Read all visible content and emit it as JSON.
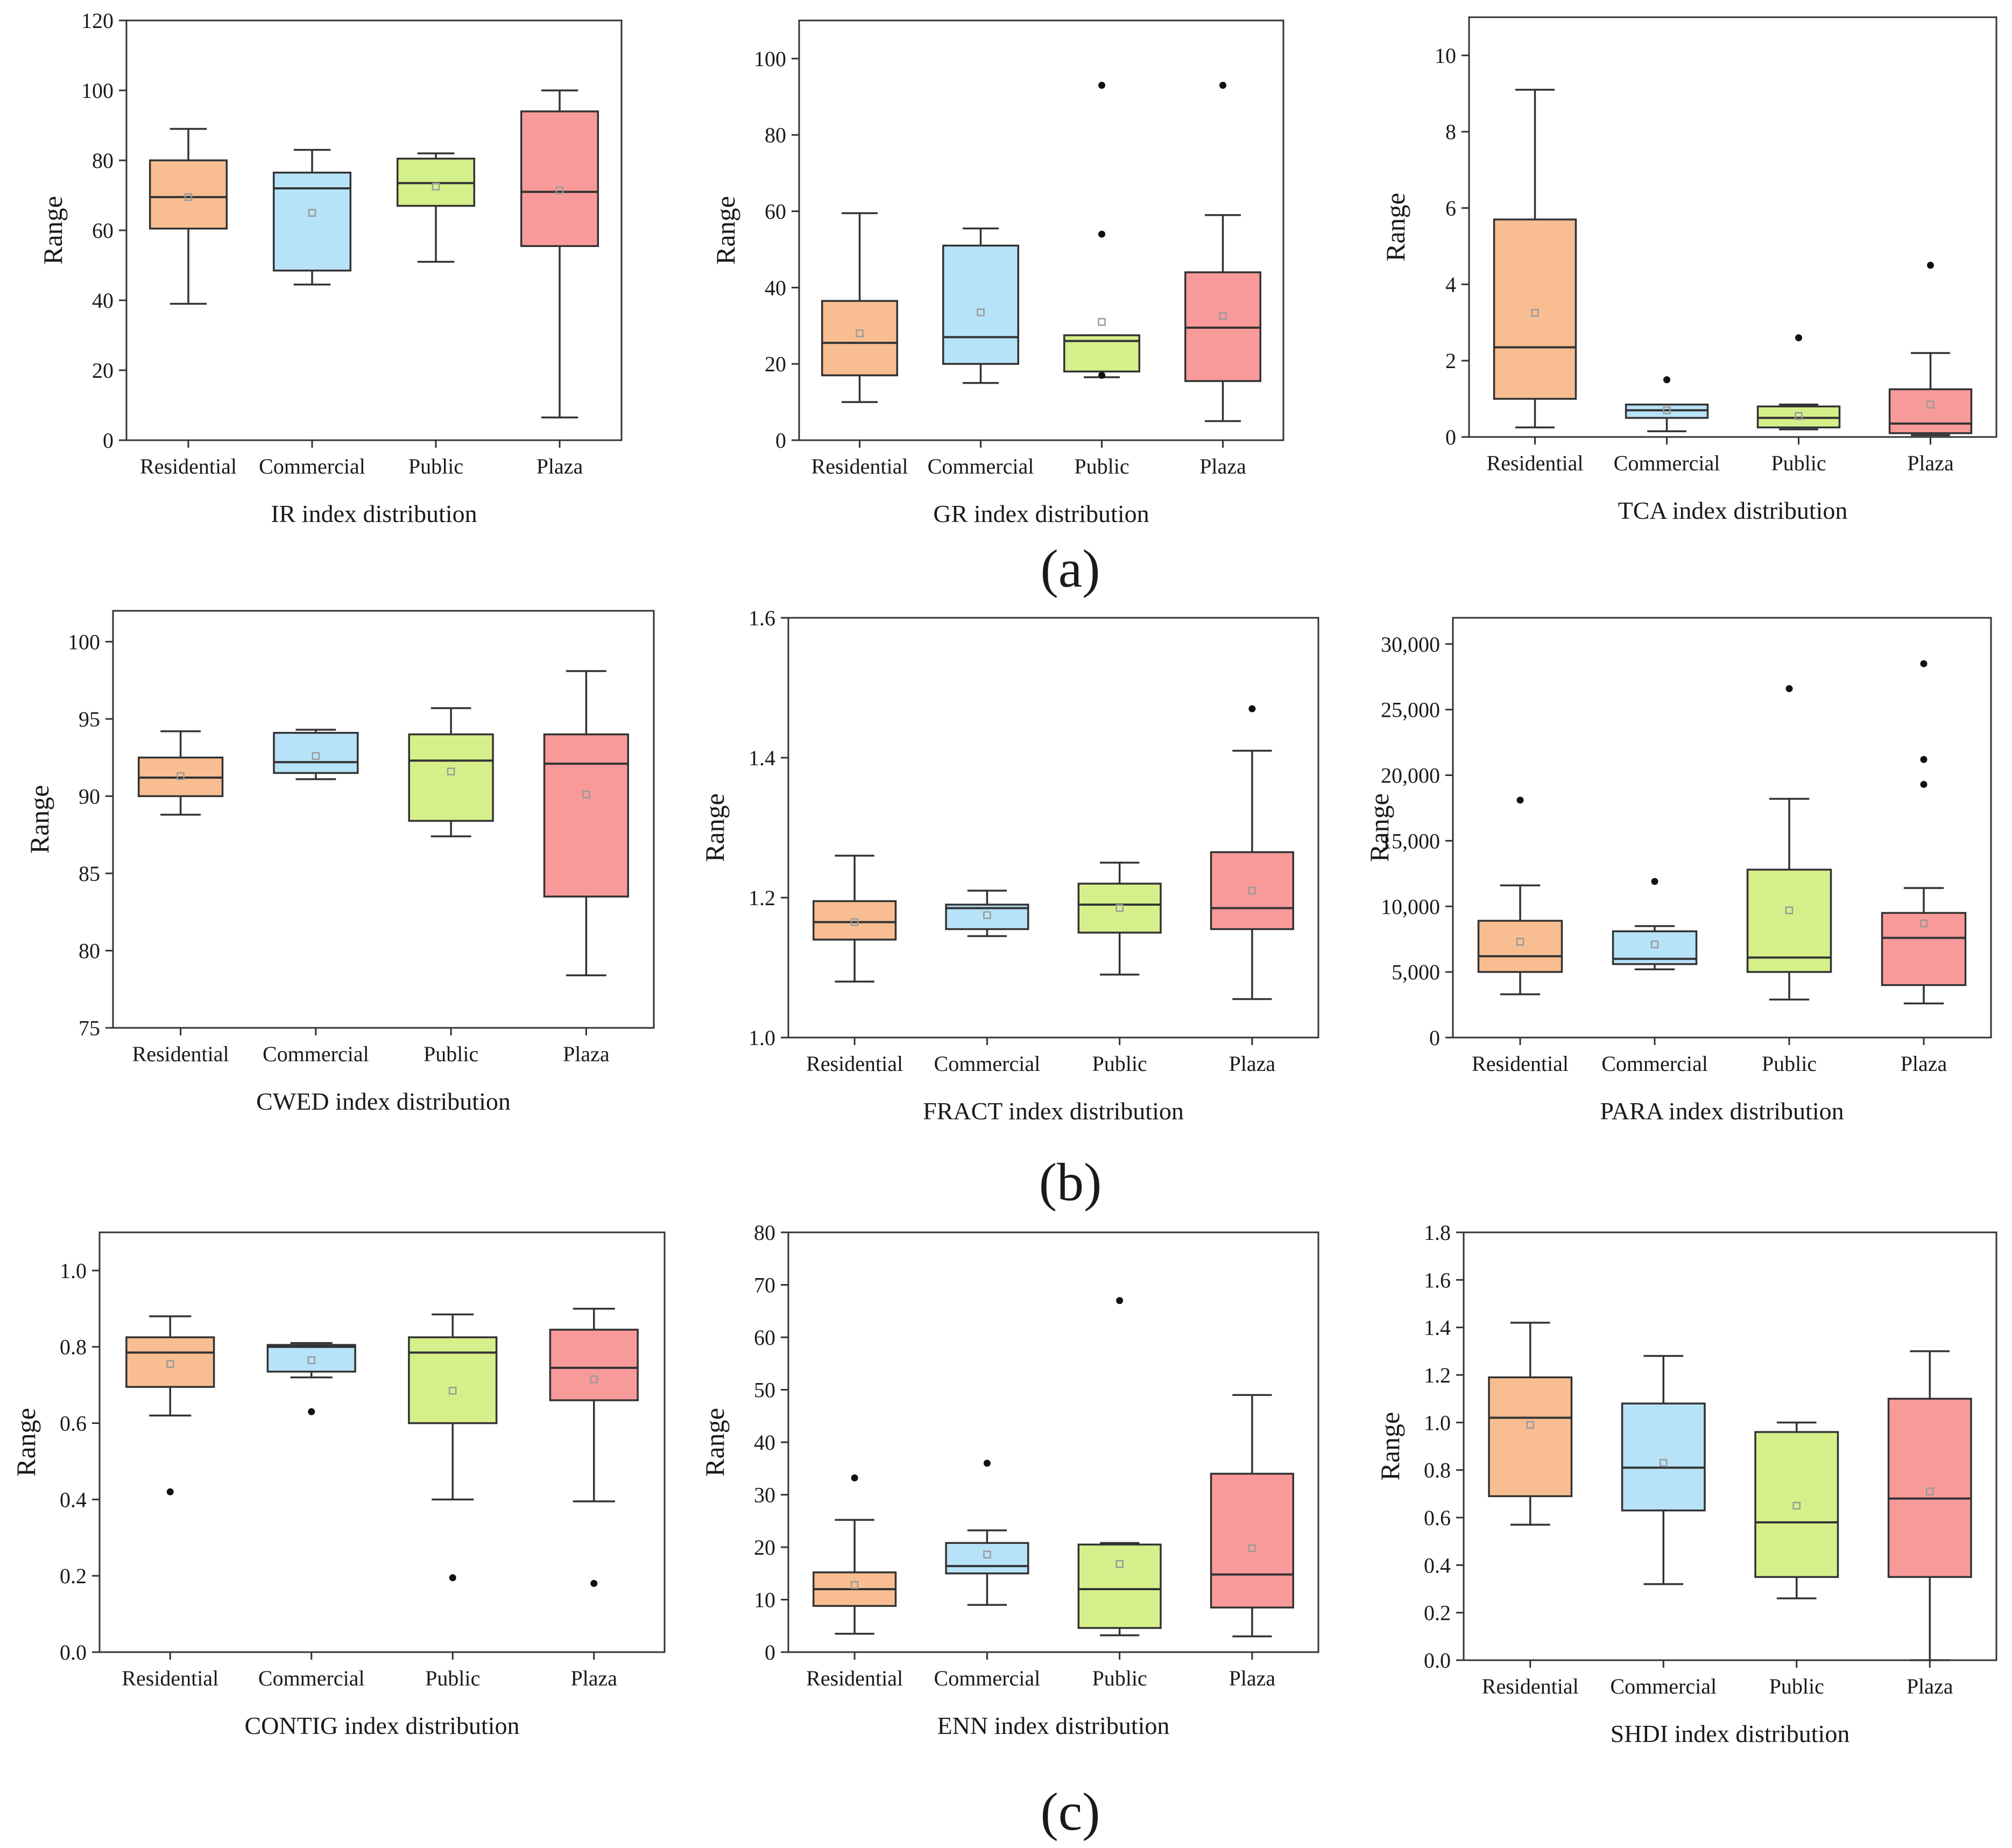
{
  "figure": {
    "panel_labels": [
      "(a)",
      "(b)",
      "(c)"
    ],
    "category_colors": {
      "Residential": "#F8BE92",
      "Commercial": "#B7E3F8",
      "Public": "#D5F08B",
      "Plaza": "#F99A9A"
    },
    "mean_marker_color": "#9a9a9a"
  },
  "chart_data": [
    {
      "type": "box",
      "title": "IR index distribution",
      "xlabel": "IR index distribution",
      "ylabel": "Range",
      "ylim": [
        0,
        120
      ],
      "yticks": [
        "0",
        "20",
        "40",
        "60",
        "80",
        "100",
        "120"
      ],
      "yticks_values": [
        0,
        20,
        40,
        60,
        80,
        100,
        120
      ],
      "categories": [
        "Residential",
        "Commercial",
        "Public",
        "Plaza"
      ],
      "boxes": [
        {
          "min": 39,
          "q1": 60.5,
          "median": 69.5,
          "q3": 80,
          "max": 89,
          "mean": 69.5,
          "outliers": []
        },
        {
          "min": 44.5,
          "q1": 48.5,
          "median": 72,
          "q3": 76.5,
          "max": 83,
          "mean": 65,
          "outliers": []
        },
        {
          "min": 51,
          "q1": 67,
          "median": 73.5,
          "q3": 80.5,
          "max": 82,
          "mean": 72.5,
          "outliers": []
        },
        {
          "min": 6.5,
          "q1": 55.5,
          "median": 71,
          "q3": 94,
          "max": 100,
          "mean": 71.5,
          "outliers": []
        }
      ]
    },
    {
      "type": "box",
      "title": "GR index distribution",
      "xlabel": "GR index distribution",
      "ylabel": "Range",
      "ylim": [
        0,
        110
      ],
      "yticks": [
        "0",
        "20",
        "40",
        "60",
        "80",
        "100"
      ],
      "yticks_values": [
        0,
        20,
        40,
        60,
        80,
        100
      ],
      "categories": [
        "Residential",
        "Commercial",
        "Public",
        "Plaza"
      ],
      "boxes": [
        {
          "min": 10,
          "q1": 17,
          "median": 25.5,
          "q3": 36.5,
          "max": 59.5,
          "mean": 28,
          "outliers": []
        },
        {
          "min": 15,
          "q1": 20,
          "median": 27,
          "q3": 51,
          "max": 55.5,
          "mean": 33.5,
          "outliers": []
        },
        {
          "min": 16.5,
          "q1": 18,
          "median": 26,
          "q3": 27.5,
          "max": 27.5,
          "mean": 31,
          "outliers": [
            54,
            93,
            17
          ]
        },
        {
          "min": 5,
          "q1": 15.5,
          "median": 29.5,
          "q3": 44,
          "max": 59,
          "mean": 32.5,
          "outliers": [
            93
          ]
        }
      ]
    },
    {
      "type": "box",
      "title": "TCA index distribution",
      "xlabel": "TCA index distribution",
      "ylabel": "Range",
      "ylim": [
        0,
        11
      ],
      "yticks": [
        "0",
        "2",
        "4",
        "6",
        "8",
        "10"
      ],
      "yticks_values": [
        0,
        2,
        4,
        6,
        8,
        10
      ],
      "categories": [
        "Residential",
        "Commercial",
        "Public",
        "Plaza"
      ],
      "boxes": [
        {
          "min": 0.25,
          "q1": 1,
          "median": 2.35,
          "q3": 5.7,
          "max": 9.1,
          "mean": 3.25,
          "outliers": []
        },
        {
          "min": 0.15,
          "q1": 0.5,
          "median": 0.7,
          "q3": 0.85,
          "max": 0.85,
          "mean": 0.7,
          "outliers": [
            1.5
          ]
        },
        {
          "min": 0.2,
          "q1": 0.25,
          "median": 0.5,
          "q3": 0.8,
          "max": 0.85,
          "mean": 0.55,
          "outliers": [
            2.6
          ]
        },
        {
          "min": 0.05,
          "q1": 0.1,
          "median": 0.35,
          "q3": 1.25,
          "max": 2.2,
          "mean": 0.85,
          "outliers": [
            4.5
          ]
        }
      ]
    },
    {
      "type": "box",
      "title": "CWED index distribution",
      "xlabel": "CWED index distribution",
      "ylabel": "Range",
      "ylim": [
        75,
        102
      ],
      "yticks": [
        "75",
        "80",
        "85",
        "90",
        "95",
        "100"
      ],
      "yticks_values": [
        75,
        80,
        85,
        90,
        95,
        100
      ],
      "categories": [
        "Residential",
        "Commercial",
        "Public",
        "Plaza"
      ],
      "boxes": [
        {
          "min": 88.8,
          "q1": 90,
          "median": 91.2,
          "q3": 92.5,
          "max": 94.2,
          "mean": 91.3,
          "outliers": []
        },
        {
          "min": 91.1,
          "q1": 91.5,
          "median": 92.2,
          "q3": 94.1,
          "max": 94.3,
          "mean": 92.6,
          "outliers": []
        },
        {
          "min": 87.4,
          "q1": 88.4,
          "median": 92.3,
          "q3": 94,
          "max": 95.7,
          "mean": 91.6,
          "outliers": []
        },
        {
          "min": 78.4,
          "q1": 83.5,
          "median": 92.1,
          "q3": 94,
          "max": 98.1,
          "mean": 90.1,
          "outliers": []
        }
      ]
    },
    {
      "type": "box",
      "title": "FRACT index distribution",
      "xlabel": "FRACT index distribution",
      "ylabel": "Range",
      "ylim": [
        1.0,
        1.6
      ],
      "yticks": [
        "1.0",
        "1.2",
        "1.4",
        "1.6"
      ],
      "yticks_values": [
        1.0,
        1.2,
        1.4,
        1.6
      ],
      "categories": [
        "Residential",
        "Commercial",
        "Public",
        "Plaza"
      ],
      "boxes": [
        {
          "min": 1.08,
          "q1": 1.14,
          "median": 1.165,
          "q3": 1.195,
          "max": 1.26,
          "mean": 1.165,
          "outliers": []
        },
        {
          "min": 1.145,
          "q1": 1.155,
          "median": 1.185,
          "q3": 1.19,
          "max": 1.21,
          "mean": 1.175,
          "outliers": []
        },
        {
          "min": 1.09,
          "q1": 1.15,
          "median": 1.19,
          "q3": 1.22,
          "max": 1.25,
          "mean": 1.185,
          "outliers": []
        },
        {
          "min": 1.055,
          "q1": 1.155,
          "median": 1.185,
          "q3": 1.265,
          "max": 1.41,
          "mean": 1.21,
          "outliers": [
            1.47
          ]
        }
      ]
    },
    {
      "type": "box",
      "title": "PARA index distribution",
      "xlabel": "PARA index distribution",
      "ylabel": "Range",
      "ylim": [
        0,
        32000
      ],
      "yticks": [
        "0",
        "5,000",
        "10,000",
        "15,000",
        "20,000",
        "25,000",
        "30,000"
      ],
      "yticks_values": [
        0,
        5000,
        10000,
        15000,
        20000,
        25000,
        30000
      ],
      "categories": [
        "Residential",
        "Commercial",
        "Public",
        "Plaza"
      ],
      "boxes": [
        {
          "min": 3300,
          "q1": 5000,
          "median": 6200,
          "q3": 8900,
          "max": 11600,
          "mean": 7300,
          "outliers": [
            18100
          ]
        },
        {
          "min": 5200,
          "q1": 5600,
          "median": 6000,
          "q3": 8100,
          "max": 8500,
          "mean": 7100,
          "outliers": [
            11900
          ]
        },
        {
          "min": 2900,
          "q1": 5000,
          "median": 6100,
          "q3": 12800,
          "max": 18200,
          "mean": 9700,
          "outliers": [
            26600
          ]
        },
        {
          "min": 2600,
          "q1": 4000,
          "median": 7600,
          "q3": 9500,
          "max": 11400,
          "mean": 8700,
          "outliers": [
            19300,
            21200,
            28500
          ]
        }
      ]
    },
    {
      "type": "box",
      "title": "CONTIG index distribution",
      "xlabel": "CONTIG index distribution",
      "ylabel": "Range",
      "ylim": [
        0,
        1.1
      ],
      "yticks": [
        "0.0",
        "0.2",
        "0.4",
        "0.6",
        "0.8",
        "1.0"
      ],
      "yticks_values": [
        0,
        0.2,
        0.4,
        0.6,
        0.8,
        1.0
      ],
      "categories": [
        "Residential",
        "Commercial",
        "Public",
        "Plaza"
      ],
      "boxes": [
        {
          "min": 0.62,
          "q1": 0.695,
          "median": 0.785,
          "q3": 0.825,
          "max": 0.88,
          "mean": 0.755,
          "outliers": [
            0.42
          ]
        },
        {
          "min": 0.72,
          "q1": 0.735,
          "median": 0.8,
          "q3": 0.805,
          "max": 0.81,
          "mean": 0.765,
          "outliers": [
            0.63
          ]
        },
        {
          "min": 0.4,
          "q1": 0.6,
          "median": 0.785,
          "q3": 0.825,
          "max": 0.885,
          "mean": 0.685,
          "outliers": [
            0.195
          ]
        },
        {
          "min": 0.395,
          "q1": 0.66,
          "median": 0.745,
          "q3": 0.845,
          "max": 0.9,
          "mean": 0.715,
          "outliers": [
            0.18
          ]
        }
      ]
    },
    {
      "type": "box",
      "title": "ENN index distribution",
      "xlabel": "ENN index distribution",
      "ylabel": "Range",
      "ylim": [
        0,
        80
      ],
      "yticks": [
        "0",
        "10",
        "20",
        "30",
        "40",
        "50",
        "60",
        "70",
        "80"
      ],
      "yticks_values": [
        0,
        10,
        20,
        30,
        40,
        50,
        60,
        70,
        80
      ],
      "categories": [
        "Residential",
        "Commercial",
        "Public",
        "Plaza"
      ],
      "boxes": [
        {
          "min": 3.5,
          "q1": 8.8,
          "median": 12,
          "q3": 15.2,
          "max": 25.2,
          "mean": 12.8,
          "outliers": [
            33.2
          ]
        },
        {
          "min": 9,
          "q1": 15,
          "median": 16.4,
          "q3": 20.8,
          "max": 23.2,
          "mean": 18.6,
          "outliers": [
            36
          ]
        },
        {
          "min": 3.2,
          "q1": 4.6,
          "median": 12,
          "q3": 20.5,
          "max": 20.8,
          "mean": 16.8,
          "outliers": [
            67
          ]
        },
        {
          "min": 3,
          "q1": 8.5,
          "median": 14.8,
          "q3": 34,
          "max": 49,
          "mean": 19.8,
          "outliers": []
        }
      ]
    },
    {
      "type": "box",
      "title": "SHDI index distribution",
      "xlabel": "SHDI index distribution",
      "ylabel": "Range",
      "ylim": [
        0,
        1.8
      ],
      "yticks": [
        "0.0",
        "0.2",
        "0.4",
        "0.6",
        "0.8",
        "1.0",
        "1.2",
        "1.4",
        "1.6",
        "1.8"
      ],
      "yticks_values": [
        0,
        0.2,
        0.4,
        0.6,
        0.8,
        1.0,
        1.2,
        1.4,
        1.6,
        1.8
      ],
      "categories": [
        "Residential",
        "Commercial",
        "Public",
        "Plaza"
      ],
      "boxes": [
        {
          "min": 0.57,
          "q1": 0.69,
          "median": 1.02,
          "q3": 1.19,
          "max": 1.42,
          "mean": 0.99,
          "outliers": []
        },
        {
          "min": 0.32,
          "q1": 0.63,
          "median": 0.81,
          "q3": 1.08,
          "max": 1.28,
          "mean": 0.83,
          "outliers": []
        },
        {
          "min": 0.26,
          "q1": 0.35,
          "median": 0.58,
          "q3": 0.96,
          "max": 1.0,
          "mean": 0.65,
          "outliers": []
        },
        {
          "min": 0.0,
          "q1": 0.35,
          "median": 0.68,
          "q3": 1.1,
          "max": 1.3,
          "mean": 0.71,
          "outliers": []
        }
      ]
    }
  ]
}
